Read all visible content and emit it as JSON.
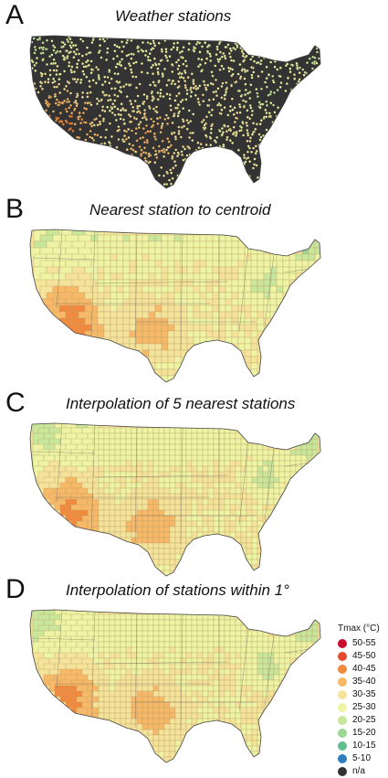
{
  "panels": [
    {
      "letter": "A",
      "title": "Weather stations",
      "mode": "stations"
    },
    {
      "letter": "B",
      "title": "Nearest station to centroid",
      "mode": "nearest"
    },
    {
      "letter": "C",
      "title": "Interpolation of 5 nearest stations",
      "mode": "interp5"
    },
    {
      "letter": "D",
      "title": "Interpolation of stations within 1°",
      "mode": "within1"
    }
  ],
  "legend": {
    "title": "Tmax (°C)",
    "items": [
      {
        "label": "50-55",
        "color": "#c8102e"
      },
      {
        "label": "45-50",
        "color": "#e64a2e"
      },
      {
        "label": "40-45",
        "color": "#f08a3e"
      },
      {
        "label": "35-40",
        "color": "#f7b867"
      },
      {
        "label": "30-35",
        "color": "#f6e39a"
      },
      {
        "label": "25-30",
        "color": "#eef4a4"
      },
      {
        "label": "20-25",
        "color": "#c9e79b"
      },
      {
        "label": "15-20",
        "color": "#9dd793"
      },
      {
        "label": "10-15",
        "color": "#5fbf8e"
      },
      {
        "label": "5-10",
        "color": "#2f7fbf"
      },
      {
        "label": "n/a",
        "color": "#333333"
      }
    ]
  },
  "map_colors": {
    "background_dark": "#333333",
    "county_border": "#b8a070",
    "state_border": "#555555"
  }
}
